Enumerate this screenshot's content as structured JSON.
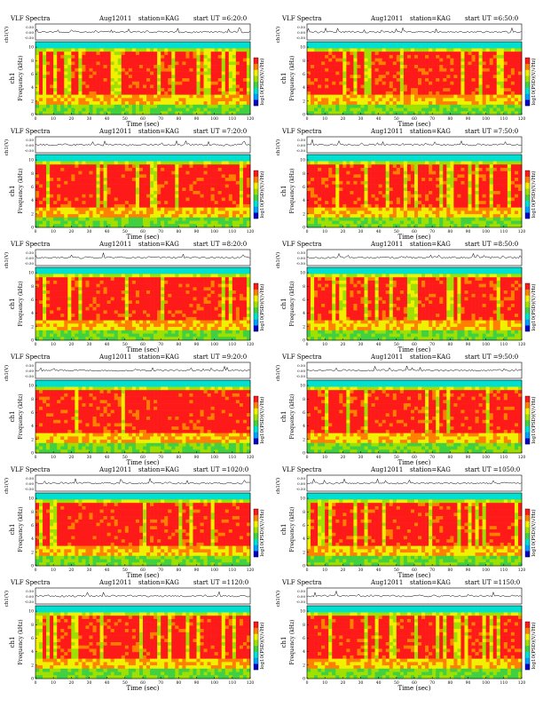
{
  "chart_data": [
    {
      "type": "heatmap",
      "title_left": "VLF Spectra",
      "date": "Aug12011",
      "station": "station=KAG",
      "start_label": "start  UT =6:20:0",
      "top_ylabel": "ch1(V)",
      "top_ticks": [
        "0.50",
        "0.00",
        "-0.50"
      ],
      "ylabel_line1": "ch1",
      "ylabel_line2": "Frequency (kHz)",
      "xlabel": "Time (sec)",
      "x_ticks": [
        0,
        10,
        20,
        30,
        40,
        50,
        60,
        70,
        80,
        90,
        100,
        110,
        120
      ],
      "y_ticks": [
        0,
        2,
        4,
        6,
        8,
        10
      ],
      "xlim": [
        0,
        120
      ],
      "ylim": [
        0,
        10.8
      ],
      "colorbar_label": "log10(PSD)(V/√Hz)",
      "colormap": [
        "#0000c8",
        "#00a0ff",
        "#00e0d0",
        "#40d040",
        "#a0e000",
        "#f0f000",
        "#ff8000",
        "#ff1a1a"
      ]
    },
    {
      "type": "heatmap",
      "title_left": "VLF Spectra",
      "date": "Aug12011",
      "station": "station=KAG",
      "start_label": "start  UT =6:50:0",
      "top_ylabel": "ch1(V)",
      "top_ticks": [
        "0.50",
        "0.00",
        "-0.50"
      ],
      "ylabel_line1": "ch1",
      "ylabel_line2": "Frequency (kHz)",
      "xlabel": "Time (sec)",
      "x_ticks": [
        0,
        10,
        20,
        30,
        40,
        50,
        60,
        70,
        80,
        90,
        100,
        110,
        120
      ],
      "y_ticks": [
        0,
        2,
        4,
        6,
        8,
        10
      ],
      "xlim": [
        0,
        120
      ],
      "ylim": [
        0,
        10.8
      ],
      "colorbar_label": "log10(PSD)(V/√Hz)",
      "colormap": [
        "#0000c8",
        "#00a0ff",
        "#00e0d0",
        "#40d040",
        "#a0e000",
        "#f0f000",
        "#ff8000",
        "#ff1a1a"
      ]
    },
    {
      "type": "heatmap",
      "title_left": "VLF Spectra",
      "date": "Aug12011",
      "station": "station=KAG",
      "start_label": "start  UT =7:20:0",
      "top_ylabel": "ch1(V)",
      "top_ticks": [
        "0.50",
        "0.00",
        "-0.50"
      ],
      "ylabel_line1": "ch1",
      "ylabel_line2": "Frequency (kHz)",
      "xlabel": "Time (sec)",
      "x_ticks": [
        0,
        10,
        20,
        30,
        40,
        50,
        60,
        70,
        80,
        90,
        100,
        110,
        120
      ],
      "y_ticks": [
        0,
        2,
        4,
        6,
        8,
        10
      ],
      "xlim": [
        0,
        120
      ],
      "ylim": [
        0,
        10.8
      ],
      "colorbar_label": "log10(PSD)(V/√Hz)",
      "colormap": [
        "#0000c8",
        "#00a0ff",
        "#00e0d0",
        "#40d040",
        "#a0e000",
        "#f0f000",
        "#ff8000",
        "#ff1a1a"
      ]
    },
    {
      "type": "heatmap",
      "title_left": "VLF Spectra",
      "date": "Aug12011",
      "station": "station=KAG",
      "start_label": "start  UT =7:50:0",
      "top_ylabel": "ch1(V)",
      "top_ticks": [
        "0.50",
        "0.00",
        "-0.50"
      ],
      "ylabel_line1": "ch1",
      "ylabel_line2": "Frequency (kHz)",
      "xlabel": "Time (sec)",
      "x_ticks": [
        0,
        10,
        20,
        30,
        40,
        50,
        60,
        70,
        80,
        90,
        100,
        110,
        120
      ],
      "y_ticks": [
        0,
        2,
        4,
        6,
        8,
        10
      ],
      "xlim": [
        0,
        120
      ],
      "ylim": [
        0,
        10.8
      ],
      "colorbar_label": "log10(PSD)(V/√Hz)",
      "colormap": [
        "#0000c8",
        "#00a0ff",
        "#00e0d0",
        "#40d040",
        "#a0e000",
        "#f0f000",
        "#ff8000",
        "#ff1a1a"
      ]
    },
    {
      "type": "heatmap",
      "title_left": "VLF Spectra",
      "date": "Aug12011",
      "station": "station=KAG",
      "start_label": "start  UT =8:20:0",
      "top_ylabel": "ch1(V)",
      "top_ticks": [
        "0.50",
        "0.00",
        "-0.50"
      ],
      "ylabel_line1": "ch1",
      "ylabel_line2": "Frequency (kHz)",
      "xlabel": "Time (sec)",
      "x_ticks": [
        0,
        10,
        20,
        30,
        40,
        50,
        60,
        70,
        80,
        90,
        100,
        110,
        120
      ],
      "y_ticks": [
        0,
        2,
        4,
        6,
        8,
        10
      ],
      "xlim": [
        0,
        120
      ],
      "ylim": [
        0,
        10.8
      ],
      "colorbar_label": "log10(PSD)(V/√Hz)",
      "colormap": [
        "#0000c8",
        "#00a0ff",
        "#00e0d0",
        "#40d040",
        "#a0e000",
        "#f0f000",
        "#ff8000",
        "#ff1a1a"
      ]
    },
    {
      "type": "heatmap",
      "title_left": "VLF Spectra",
      "date": "Aug12011",
      "station": "station=KAG",
      "start_label": "start  UT =8:50:0",
      "top_ylabel": "ch1(V)",
      "top_ticks": [
        "0.50",
        "0.00",
        "-0.50"
      ],
      "ylabel_line1": "ch1",
      "ylabel_line2": "Frequency (kHz)",
      "xlabel": "Time (sec)",
      "x_ticks": [
        0,
        10,
        20,
        30,
        40,
        50,
        60,
        70,
        80,
        90,
        100,
        110,
        120
      ],
      "y_ticks": [
        0,
        2,
        4,
        6,
        8,
        10
      ],
      "xlim": [
        0,
        120
      ],
      "ylim": [
        0,
        10.8
      ],
      "colorbar_label": "log10(PSD)(V/√Hz)",
      "colormap": [
        "#0000c8",
        "#00a0ff",
        "#00e0d0",
        "#40d040",
        "#a0e000",
        "#f0f000",
        "#ff8000",
        "#ff1a1a"
      ]
    },
    {
      "type": "heatmap",
      "title_left": "VLF Spectra",
      "date": "Aug12011",
      "station": "station=KAG",
      "start_label": "start  UT =9:20:0",
      "top_ylabel": "ch1(V)",
      "top_ticks": [
        "0.50",
        "0.00",
        "-0.50"
      ],
      "ylabel_line1": "ch1",
      "ylabel_line2": "Frequency (kHz)",
      "xlabel": "Time (sec)",
      "x_ticks": [
        0,
        10,
        20,
        30,
        40,
        50,
        60,
        70,
        80,
        90,
        100,
        110,
        120
      ],
      "y_ticks": [
        0,
        2,
        4,
        6,
        8,
        10
      ],
      "xlim": [
        0,
        120
      ],
      "ylim": [
        0,
        10.8
      ],
      "colorbar_label": "log10(PSD)(V/√Hz)",
      "colormap": [
        "#0000c8",
        "#00a0ff",
        "#00e0d0",
        "#40d040",
        "#a0e000",
        "#f0f000",
        "#ff8000",
        "#ff1a1a"
      ]
    },
    {
      "type": "heatmap",
      "title_left": "VLF Spectra",
      "date": "Aug12011",
      "station": "station=KAG",
      "start_label": "start  UT =9:50:0",
      "top_ylabel": "ch1(V)",
      "top_ticks": [
        "0.50",
        "0.00",
        "-0.50"
      ],
      "ylabel_line1": "ch1",
      "ylabel_line2": "Frequency (kHz)",
      "xlabel": "Time (sec)",
      "x_ticks": [
        0,
        10,
        20,
        30,
        40,
        50,
        60,
        70,
        80,
        90,
        100,
        110,
        120
      ],
      "y_ticks": [
        0,
        2,
        4,
        6,
        8,
        10
      ],
      "xlim": [
        0,
        120
      ],
      "ylim": [
        0,
        10.8
      ],
      "colorbar_label": "log10(PSD)(V/√Hz)",
      "colormap": [
        "#0000c8",
        "#00a0ff",
        "#00e0d0",
        "#40d040",
        "#a0e000",
        "#f0f000",
        "#ff8000",
        "#ff1a1a"
      ]
    },
    {
      "type": "heatmap",
      "title_left": "VLF Spectra",
      "date": "Aug12011",
      "station": "station=KAG",
      "start_label": "start  UT =1020:0",
      "top_ylabel": "ch1(V)",
      "top_ticks": [
        "0.50",
        "0.00",
        "-0.50"
      ],
      "ylabel_line1": "ch1",
      "ylabel_line2": "Frequency (kHz)",
      "xlabel": "Time (sec)",
      "x_ticks": [
        0,
        10,
        20,
        30,
        40,
        50,
        60,
        70,
        80,
        90,
        100,
        110,
        120
      ],
      "y_ticks": [
        0,
        2,
        4,
        6,
        8,
        10
      ],
      "xlim": [
        0,
        120
      ],
      "ylim": [
        0,
        10.8
      ],
      "colorbar_label": "log10(PSD)(V/√Hz)",
      "colormap": [
        "#0000c8",
        "#00a0ff",
        "#00e0d0",
        "#40d040",
        "#a0e000",
        "#f0f000",
        "#ff8000",
        "#ff1a1a"
      ]
    },
    {
      "type": "heatmap",
      "title_left": "VLF Spectra",
      "date": "Aug12011",
      "station": "station=KAG",
      "start_label": "start  UT =1050:0",
      "top_ylabel": "ch1(V)",
      "top_ticks": [
        "0.50",
        "0.00",
        "-0.50"
      ],
      "ylabel_line1": "ch1",
      "ylabel_line2": "Frequency (kHz)",
      "xlabel": "Time (sec)",
      "x_ticks": [
        0,
        10,
        20,
        30,
        40,
        50,
        60,
        70,
        80,
        90,
        100,
        110,
        120
      ],
      "y_ticks": [
        0,
        2,
        4,
        6,
        8,
        10
      ],
      "xlim": [
        0,
        120
      ],
      "ylim": [
        0,
        10.8
      ],
      "colorbar_label": "log10(PSD)(V/√Hz)",
      "colormap": [
        "#0000c8",
        "#00a0ff",
        "#00e0d0",
        "#40d040",
        "#a0e000",
        "#f0f000",
        "#ff8000",
        "#ff1a1a"
      ]
    },
    {
      "type": "heatmap",
      "title_left": "VLF Spectra",
      "date": "Aug12011",
      "station": "station=KAG",
      "start_label": "start  UT =1120:0",
      "top_ylabel": "ch1(V)",
      "top_ticks": [
        "0.50",
        "0.00",
        "-0.50"
      ],
      "ylabel_line1": "ch1",
      "ylabel_line2": "Frequency (kHz)",
      "xlabel": "Time (sec)",
      "x_ticks": [
        0,
        10,
        20,
        30,
        40,
        50,
        60,
        70,
        80,
        90,
        100,
        110,
        120
      ],
      "y_ticks": [
        0,
        2,
        4,
        6,
        8,
        10
      ],
      "xlim": [
        0,
        120
      ],
      "ylim": [
        0,
        10.8
      ],
      "colorbar_label": "log10(PSD)(V/√Hz)",
      "colormap": [
        "#0000c8",
        "#00a0ff",
        "#00e0d0",
        "#40d040",
        "#a0e000",
        "#f0f000",
        "#ff8000",
        "#ff1a1a"
      ]
    },
    {
      "type": "heatmap",
      "title_left": "VLF Spectra",
      "date": "Aug12011",
      "station": "station=KAG",
      "start_label": "start  UT =1150:0",
      "top_ylabel": "ch1(V)",
      "top_ticks": [
        "0.50",
        "0.00",
        "-0.50"
      ],
      "ylabel_line1": "ch1",
      "ylabel_line2": "Frequency (kHz)",
      "xlabel": "Time (sec)",
      "x_ticks": [
        0,
        10,
        20,
        30,
        40,
        50,
        60,
        70,
        80,
        90,
        100,
        110,
        120
      ],
      "y_ticks": [
        0,
        2,
        4,
        6,
        8,
        10
      ],
      "xlim": [
        0,
        120
      ],
      "ylim": [
        0,
        10.8
      ],
      "colorbar_label": "log10(PSD)(V/√Hz)",
      "colormap": [
        "#0000c8",
        "#00a0ff",
        "#00e0d0",
        "#40d040",
        "#a0e000",
        "#f0f000",
        "#ff8000",
        "#ff1a1a"
      ]
    }
  ]
}
